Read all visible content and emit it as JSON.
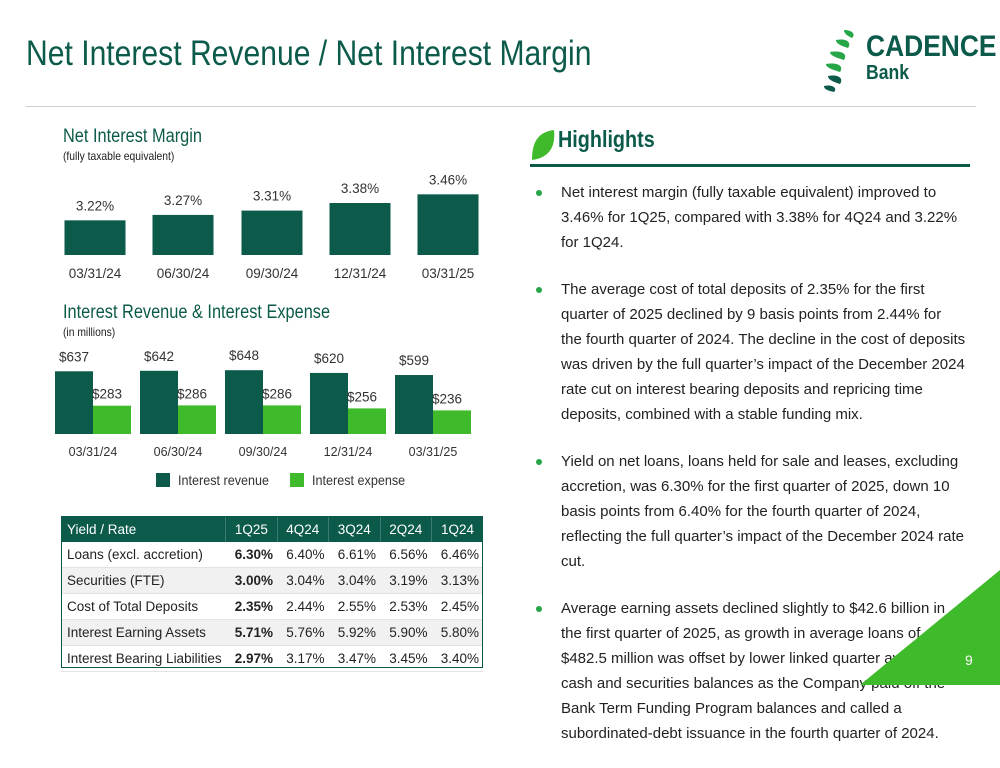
{
  "title": "Net Interest Revenue / Net Interest Margin",
  "logo": {
    "name": "CADENCE",
    "sub": "Bank"
  },
  "nim_chart": {
    "title": "Net Interest Margin",
    "subtitle": "(fully taxable equivalent)"
  },
  "revexp_chart": {
    "title": "Interest Revenue & Interest Expense",
    "subtitle": "(in millions)",
    "legend": {
      "revenue": "Interest revenue",
      "expense": "Interest expense"
    }
  },
  "colors": {
    "brand_dark": "#0b5a4a",
    "brand_green": "#26a646",
    "accent_lime": "#3fba2a"
  },
  "chart_data": [
    {
      "type": "bar",
      "title": "Net Interest Margin",
      "categories": [
        "03/31/24",
        "06/30/24",
        "09/30/24",
        "12/31/24",
        "03/31/25"
      ],
      "values": [
        3.22,
        3.27,
        3.31,
        3.38,
        3.46
      ],
      "labels": [
        "3.22%",
        "3.27%",
        "3.31%",
        "3.38%",
        "3.46%"
      ],
      "ylim": [
        2.9,
        3.5
      ]
    },
    {
      "type": "bar",
      "title": "Interest Revenue & Interest Expense",
      "categories": [
        "03/31/24",
        "06/30/24",
        "09/30/24",
        "12/31/24",
        "03/31/25"
      ],
      "series": [
        {
          "name": "Interest revenue",
          "values": [
            637,
            642,
            648,
            620,
            599
          ],
          "labels": [
            "$637",
            "$642",
            "$648",
            "$620",
            "$599"
          ]
        },
        {
          "name": "Interest expense",
          "values": [
            283,
            286,
            286,
            256,
            236
          ],
          "labels": [
            "$283",
            "$286",
            "$286",
            "$256",
            "$236"
          ]
        }
      ],
      "legend": "bottom"
    }
  ],
  "table": {
    "headers": [
      "Yield / Rate",
      "1Q25",
      "4Q24",
      "3Q24",
      "2Q24",
      "1Q24"
    ],
    "rows": [
      [
        "Loans (excl. accretion)",
        "6.30%",
        "6.40%",
        "6.61%",
        "6.56%",
        "6.46%"
      ],
      [
        "Securities (FTE)",
        "3.00%",
        "3.04%",
        "3.04%",
        "3.19%",
        "3.13%"
      ],
      [
        "Cost of Total Deposits",
        "2.35%",
        "2.44%",
        "2.55%",
        "2.53%",
        "2.45%"
      ],
      [
        "Interest Earning Assets",
        "5.71%",
        "5.76%",
        "5.92%",
        "5.90%",
        "5.80%"
      ],
      [
        "Interest Bearing Liabilities",
        "2.97%",
        "3.17%",
        "3.47%",
        "3.45%",
        "3.40%"
      ]
    ]
  },
  "highlights": {
    "title": "Highlights",
    "items": [
      "Net interest margin (fully taxable equivalent) improved to 3.46% for 1Q25, compared with 3.38% for 4Q24 and 3.22% for 1Q24.",
      "The average cost of total deposits of 2.35% for the first quarter of 2025 declined by 9 basis points from 2.44% for the fourth quarter of 2024. The decline in the cost of deposits was driven by the full quarter’s impact of the December 2024 rate cut on interest bearing deposits and repricing time deposits, combined with a stable funding mix.",
      "Yield on net loans, loans held for sale and leases, excluding accretion, was 6.30% for the first quarter of 2025, down 10 basis points from 6.40% for the fourth quarter of 2024, reflecting the full quarter’s impact of the December 2024 rate cut.",
      "Average earning assets declined slightly to $42.6 billion in the first quarter of 2025, as growth in average loans of $482.5 million was offset by lower linked quarter average cash and securities balances as the Company paid off the Bank Term Funding Program balances and called a subordinated-debt issuance in the fourth quarter of 2024."
    ]
  },
  "page_number": "9"
}
